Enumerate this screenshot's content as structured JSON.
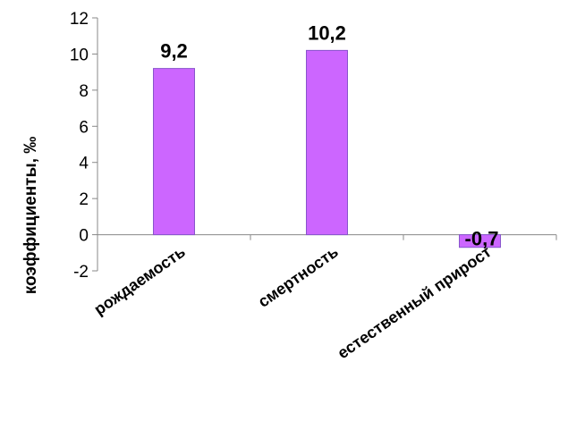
{
  "chart_data": {
    "type": "bar",
    "title": "",
    "xlabel": "",
    "ylabel": "коэффициенты, ‰",
    "categories": [
      "рождаемость",
      "смертность",
      "естественный прирост"
    ],
    "values": [
      9.2,
      10.2,
      -0.7
    ],
    "data_labels": [
      "9,2",
      "10,2",
      "-0,7"
    ],
    "ylim": [
      -2,
      12
    ],
    "yticks": [
      12,
      10,
      8,
      6,
      4,
      2,
      0,
      -2
    ],
    "ytick_labels": [
      "12",
      "10",
      "8",
      "6",
      "4",
      "2",
      "0",
      "-2"
    ],
    "grid": false,
    "legend": "none",
    "colors": {
      "bar_fill": "#cc66ff",
      "bar_stroke": "#8855cc",
      "axis": "#888888"
    }
  }
}
